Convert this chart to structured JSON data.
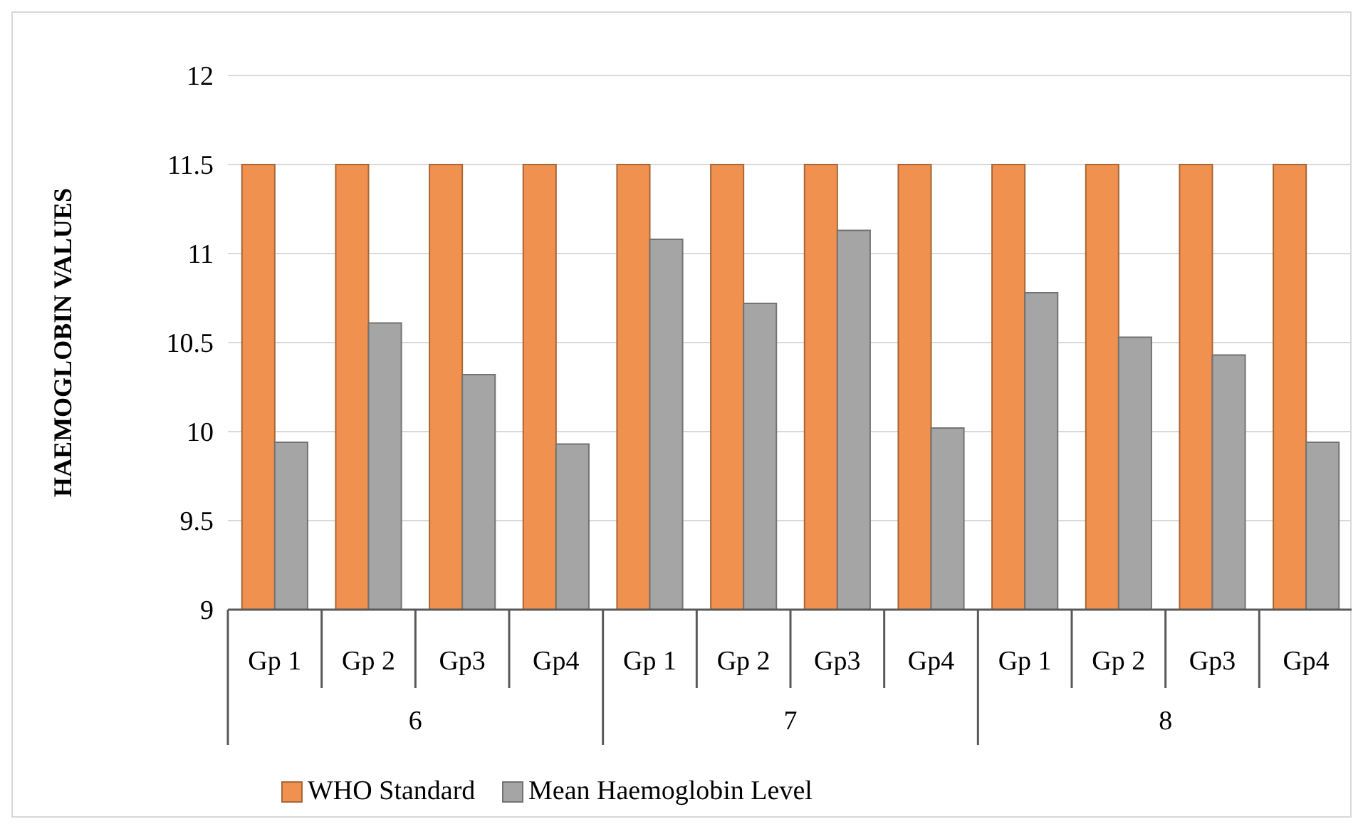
{
  "chart_data": {
    "type": "bar",
    "ylabel": "HAEMOGLOBIN VALUES",
    "categories": [
      "Gp 1",
      "Gp 2",
      "Gp3",
      "Gp4",
      "Gp 1",
      "Gp 2",
      "Gp3",
      "Gp4",
      "Gp 1",
      "Gp 2",
      "Gp3",
      "Gp4"
    ],
    "annotations": [
      "6",
      "7",
      "8"
    ],
    "series": [
      {
        "name": "WHO Standard",
        "color": "#f0914f",
        "values": [
          11.5,
          11.5,
          11.5,
          11.5,
          11.5,
          11.5,
          11.5,
          11.5,
          11.5,
          11.5,
          11.5,
          11.5
        ]
      },
      {
        "name": "Mean Haemoglobin Level",
        "color": "#a5a5a5",
        "values": [
          9.94,
          10.61,
          10.32,
          9.93,
          11.08,
          10.72,
          11.13,
          10.02,
          10.78,
          10.53,
          10.43,
          9.94
        ]
      }
    ],
    "ylim": [
      9,
      12
    ],
    "yticks": [
      9,
      9.5,
      10,
      10.5,
      11,
      11.5,
      12
    ],
    "grid": "y",
    "legend": "bottom"
  }
}
